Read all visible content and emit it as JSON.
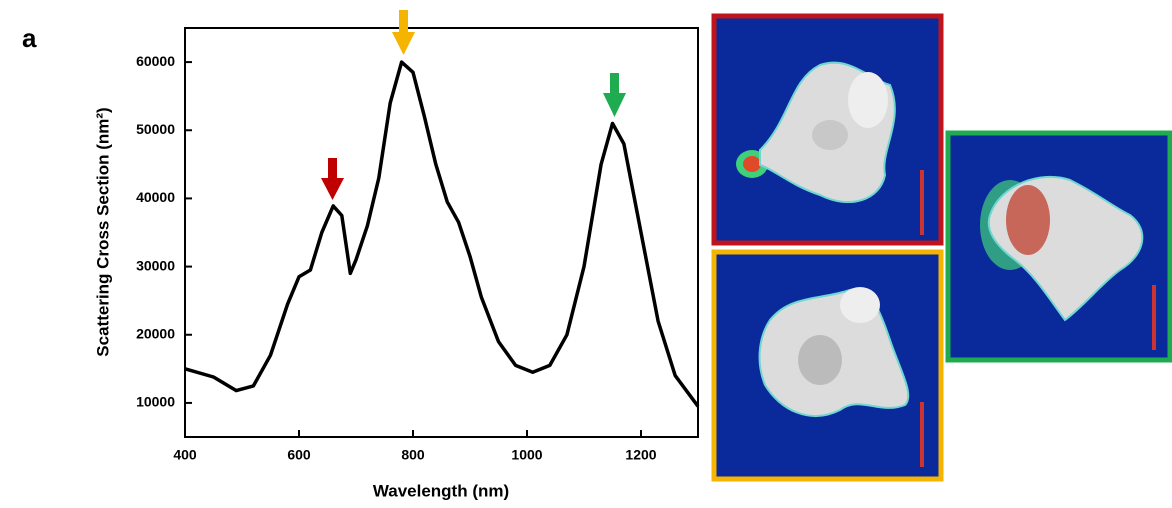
{
  "chart_data": {
    "type": "line",
    "panel_label": "a",
    "x_label": "Wavelength (nm)",
    "y_label": "Scattering Cross Section (nm²)",
    "x": [
      400,
      450,
      490,
      520,
      550,
      580,
      600,
      620,
      640,
      660,
      675,
      690,
      700,
      720,
      740,
      760,
      780,
      800,
      820,
      840,
      860,
      880,
      900,
      920,
      950,
      980,
      1010,
      1040,
      1070,
      1100,
      1130,
      1150,
      1170,
      1200,
      1230,
      1260,
      1300
    ],
    "values": [
      15000,
      13800,
      11800,
      12500,
      17000,
      24500,
      28500,
      29500,
      35000,
      38900,
      37500,
      29000,
      31000,
      36000,
      43000,
      54000,
      60000,
      58500,
      52000,
      45000,
      39500,
      36500,
      31500,
      25500,
      19000,
      15500,
      14500,
      15500,
      20000,
      30000,
      45000,
      51000,
      48000,
      35000,
      22000,
      14000,
      9500
    ],
    "color": "#000000",
    "xlim": [
      400,
      1300
    ],
    "xticks": [
      400,
      600,
      800,
      1000,
      1200
    ],
    "ylim": [
      5000,
      65000
    ],
    "yticks": [
      10000,
      20000,
      30000,
      40000,
      50000,
      60000
    ]
  }
}
